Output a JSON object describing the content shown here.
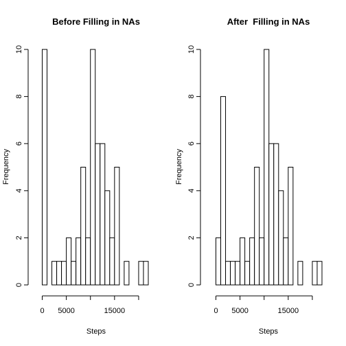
{
  "chart_data": [
    {
      "type": "bar",
      "title": "Before Filling in NAs",
      "xlabel": "Steps",
      "ylabel": "Frequency",
      "bin_width": 1000,
      "x_start": 0,
      "x_end": 22000,
      "xlim": [
        0,
        22000
      ],
      "ylim": [
        0,
        10
      ],
      "xticks": [
        0,
        5000,
        15000
      ],
      "yticks": [
        0,
        2,
        4,
        6,
        8,
        10
      ],
      "values": [
        10,
        0,
        1,
        1,
        1,
        2,
        1,
        2,
        5,
        2,
        10,
        6,
        6,
        4,
        2,
        5,
        0,
        1,
        0,
        0,
        1,
        1
      ],
      "grid": false
    },
    {
      "type": "bar",
      "title": "After  Filling in NAs",
      "xlabel": "Steps",
      "ylabel": "Frequency",
      "bin_width": 1000,
      "x_start": 0,
      "x_end": 22000,
      "xlim": [
        0,
        22000
      ],
      "ylim": [
        0,
        10
      ],
      "xticks": [
        0,
        5000,
        15000
      ],
      "yticks": [
        0,
        2,
        4,
        6,
        8,
        10
      ],
      "values": [
        2,
        8,
        1,
        1,
        1,
        2,
        1,
        2,
        5,
        2,
        10,
        6,
        6,
        4,
        2,
        5,
        0,
        1,
        0,
        0,
        1,
        1
      ],
      "grid": false
    }
  ]
}
